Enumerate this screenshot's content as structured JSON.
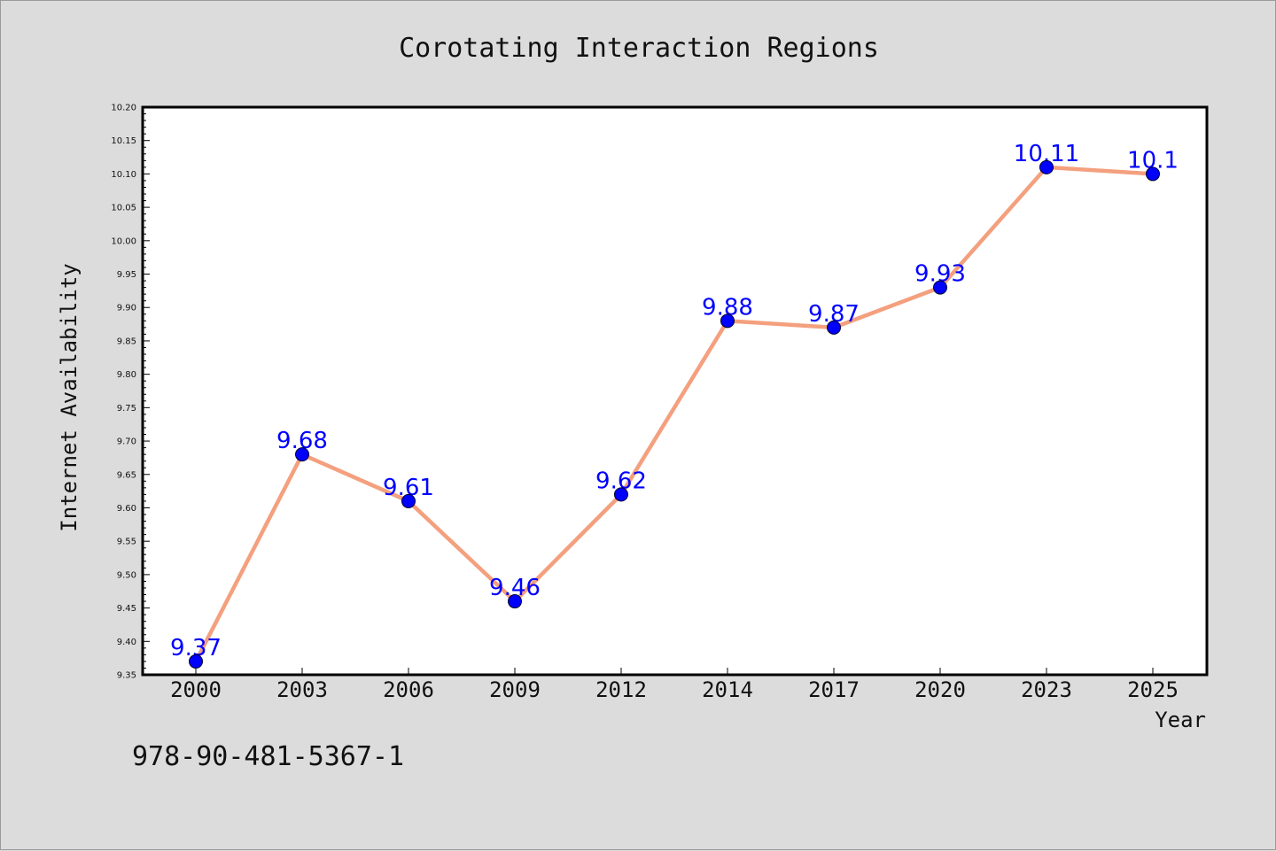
{
  "colors": {
    "background": "#dcdcdc",
    "plot_area": "#ffffff",
    "line": "#f4a07e",
    "marker": "#0000ff",
    "data_label": "#0000ff"
  },
  "isbn": "978-90-481-5367-1",
  "chart_data": {
    "type": "line",
    "title": "Corotating Interaction Regions",
    "xlabel": "Year",
    "ylabel": "Internet Availability",
    "categories": [
      "2000",
      "2003",
      "2006",
      "2009",
      "2012",
      "2014",
      "2017",
      "2020",
      "2023",
      "2025"
    ],
    "series": [
      {
        "values": [
          9.37,
          9.68,
          9.61,
          9.46,
          9.62,
          9.88,
          9.87,
          9.93,
          10.11,
          10.1
        ],
        "labels": [
          "9.37",
          "9.68",
          "9.61",
          "9.46",
          "9.62",
          "9.88",
          "9.87",
          "9.93",
          "10.11",
          "10.1"
        ]
      }
    ],
    "ylim": [
      9.35,
      10.2
    ],
    "yticks": [
      "9.35",
      "9.40",
      "9.45",
      "9.50",
      "9.55",
      "9.60",
      "9.65",
      "9.70",
      "9.75",
      "9.80",
      "9.85",
      "9.90",
      "9.95",
      "10.00",
      "10.05",
      "10.10",
      "10.15",
      "10.20"
    ],
    "grid": false,
    "legend": "none"
  }
}
